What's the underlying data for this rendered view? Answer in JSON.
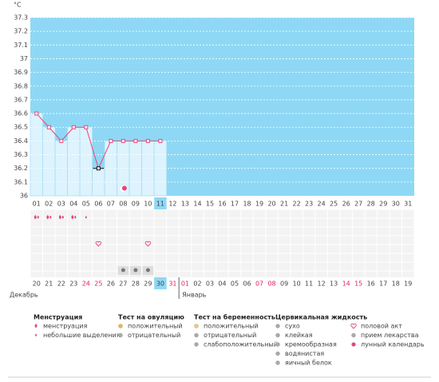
{
  "unit": "°C",
  "chart_data": {
    "type": "line",
    "categories": [
      "01",
      "02",
      "03",
      "04",
      "05",
      "06",
      "07",
      "08",
      "09",
      "10",
      "11",
      "12",
      "13",
      "14",
      "15",
      "16",
      "17",
      "18",
      "19",
      "20",
      "21",
      "22",
      "23",
      "24",
      "25",
      "26",
      "27",
      "28",
      "29",
      "30",
      "31"
    ],
    "values": [
      36.6,
      36.5,
      36.4,
      36.5,
      36.5,
      36.2,
      36.4,
      36.4,
      36.4,
      36.4,
      36.4,
      null,
      null,
      null,
      null,
      null,
      null,
      null,
      null,
      null,
      null,
      null,
      null,
      null,
      null,
      null,
      null,
      null,
      null,
      null,
      null
    ],
    "ylim": [
      36,
      37.3
    ],
    "yticks": [
      36,
      36.1,
      36.2,
      36.3,
      36.4,
      36.5,
      36.6,
      36.7,
      36.8,
      36.9,
      37,
      37.1,
      37.2,
      37.3
    ],
    "color": "#e8457d",
    "grid": true
  },
  "bottom_dates": [
    "20",
    "21",
    "22",
    "23",
    "24",
    "25",
    "26",
    "27",
    "28",
    "29",
    "30",
    "31",
    "01",
    "02",
    "03",
    "04",
    "05",
    "06",
    "07",
    "08",
    "09",
    "10",
    "11",
    "12",
    "13",
    "14",
    "15",
    "16",
    "17",
    "18",
    "19"
  ],
  "months": [
    "Декабрь",
    "Январь"
  ],
  "legend": [
    {
      "title": "Менструация",
      "items": [
        "менструация",
        "небольшие выделения"
      ]
    },
    {
      "title": "Тест на овуляцию",
      "items": [
        "положительный",
        "отрицательный"
      ]
    },
    {
      "title": "Тест на беременность",
      "items": [
        "положительный",
        "отрицательный",
        "слабоположительный"
      ]
    },
    {
      "title": "Цервикальная жидкость",
      "items": [
        "сухо",
        "клейкая",
        "кремообразная",
        "водянистая",
        "яичный белок"
      ]
    },
    {
      "items": [
        "половой акт",
        "прием лекарства",
        "лунный календарь"
      ]
    }
  ]
}
